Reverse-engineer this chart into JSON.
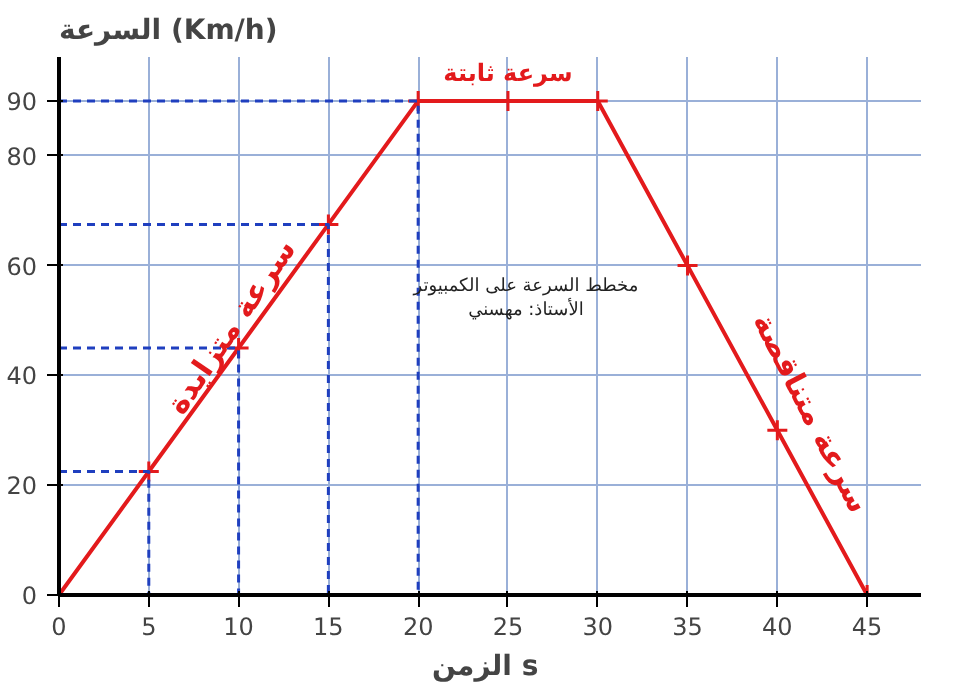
{
  "chart_data": {
    "type": "line",
    "title": "السرعة (Km/h)",
    "xlabel": "الزمن  s",
    "x": [
      0,
      5,
      10,
      15,
      20,
      25,
      30,
      35,
      40,
      45
    ],
    "series": [
      {
        "color": "#e31a1c",
        "values": [
          0,
          22.5,
          45,
          67.5,
          90,
          90,
          90,
          60,
          30,
          0
        ],
        "marker": "cross",
        "line_style": "solid"
      },
      {
        "type": "line",
        "color": "#1f3fbf",
        "line_style": "dashed",
        "marker": "none",
        "x": [
          0,
          5,
          5,
          null,
          0,
          10,
          10,
          null,
          0,
          15,
          15,
          null,
          0,
          20,
          20
        ],
        "values": [
          22.5,
          22.5,
          0,
          null,
          45,
          45,
          0,
          null,
          67.5,
          67.5,
          0,
          null,
          90,
          90,
          0
        ]
      }
    ],
    "xlim": [
      0,
      48
    ],
    "ylim": [
      0,
      98
    ],
    "xticks": [
      0,
      5,
      10,
      15,
      20,
      25,
      30,
      35,
      40,
      45
    ],
    "yticks": [
      0,
      20,
      40,
      60,
      80,
      90
    ],
    "grid": true,
    "annotations": [
      {
        "text": "سرعة ثابتة",
        "x": 25,
        "y": 90
      },
      {
        "text": "سرعة متزايدة",
        "x": 10,
        "y": 45
      },
      {
        "text": "سرعة متناقصة",
        "x": 40,
        "y": 30
      },
      "مخطط السرعة على الكمبيوتر\nالأستاذ: مهسني"
    ]
  }
}
